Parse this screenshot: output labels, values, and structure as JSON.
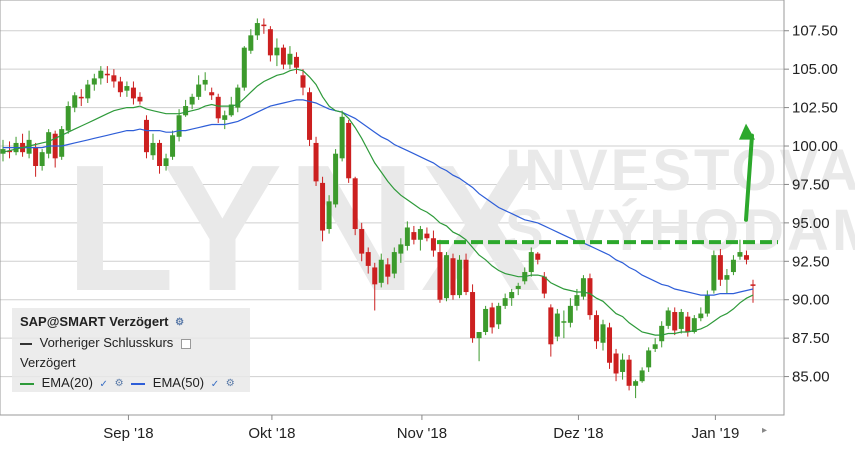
{
  "watermark": {
    "logo": "LYNX",
    "line1": "INVESTOVAT",
    "line2": "S VÝHODAMI"
  },
  "legend": {
    "title": "SAP@SMART Verzögert",
    "previous_close": "Vorheriger Schlusskurs",
    "delayed": "Verzögert",
    "ema20_label": "EMA(20)",
    "ema50_label": "EMA(50)"
  },
  "colors": {
    "up": "#3c9a2c",
    "down": "#cc2020",
    "ema20": "#2e9a3a",
    "ema50": "#2e5ed8",
    "resistance": "#2ca82c",
    "arrow": "#2ca82c",
    "grid": "#cfcfcf"
  },
  "chart_data": {
    "type": "candlestick",
    "x_ticks": [
      "Sep '18",
      "Okt '18",
      "Nov '18",
      "Dez '18",
      "Jan '19"
    ],
    "y_ticks": [
      "85.00",
      "87.50",
      "90.00",
      "92.50",
      "95.00",
      "97.50",
      "100.00",
      "102.50",
      "105.00",
      "107.50"
    ],
    "ylim": [
      82.5,
      109.5
    ],
    "grid": true,
    "resistance_level": 93.75,
    "arrow": {
      "from": 95.2,
      "to": 101.2,
      "direction": "up"
    },
    "ohlc": [
      [
        99.5,
        100.4,
        99.0,
        99.8
      ],
      [
        99.7,
        100.3,
        99.2,
        99.6
      ],
      [
        99.6,
        100.6,
        99.4,
        100.2
      ],
      [
        100.2,
        100.8,
        99.3,
        99.6
      ],
      [
        99.5,
        101.0,
        99.2,
        100.4
      ],
      [
        99.9,
        100.2,
        98.0,
        98.7
      ],
      [
        98.7,
        99.8,
        98.4,
        99.6
      ],
      [
        99.5,
        101.1,
        99.2,
        100.9
      ],
      [
        100.8,
        101.0,
        98.6,
        99.2
      ],
      [
        99.3,
        101.3,
        99.1,
        101.1
      ],
      [
        101.0,
        102.9,
        100.8,
        102.6
      ],
      [
        102.5,
        103.5,
        102.2,
        103.3
      ],
      [
        103.2,
        103.7,
        102.6,
        103.1
      ],
      [
        103.1,
        104.3,
        102.8,
        104.0
      ],
      [
        104.0,
        104.7,
        103.6,
        104.4
      ],
      [
        104.4,
        105.2,
        104.0,
        104.9
      ],
      [
        104.7,
        105.2,
        104.1,
        104.6
      ],
      [
        104.6,
        105.0,
        103.8,
        104.2
      ],
      [
        104.2,
        104.5,
        103.2,
        103.5
      ],
      [
        103.6,
        104.2,
        103.2,
        103.9
      ],
      [
        103.8,
        104.2,
        102.7,
        103.1
      ],
      [
        103.2,
        103.5,
        102.7,
        102.9
      ],
      [
        101.7,
        102.0,
        99.2,
        99.6
      ],
      [
        99.4,
        100.8,
        99.1,
        100.2
      ],
      [
        100.2,
        100.4,
        98.2,
        98.7
      ],
      [
        98.7,
        99.5,
        98.4,
        99.2
      ],
      [
        99.3,
        101.0,
        99.1,
        100.7
      ],
      [
        100.6,
        102.4,
        100.3,
        102.0
      ],
      [
        102.0,
        103.0,
        101.9,
        102.6
      ],
      [
        102.7,
        103.4,
        102.4,
        103.2
      ],
      [
        103.2,
        104.6,
        103.0,
        104.0
      ],
      [
        104.0,
        104.8,
        103.6,
        104.3
      ],
      [
        103.5,
        103.8,
        103.0,
        103.3
      ],
      [
        103.2,
        103.4,
        101.5,
        101.8
      ],
      [
        101.7,
        102.3,
        101.1,
        102.0
      ],
      [
        102.0,
        103.2,
        101.9,
        102.7
      ],
      [
        102.5,
        104.0,
        102.2,
        103.8
      ],
      [
        103.8,
        106.5,
        103.6,
        106.4
      ],
      [
        106.2,
        107.6,
        106.0,
        107.2
      ],
      [
        107.2,
        108.3,
        106.9,
        108.0
      ],
      [
        107.9,
        108.3,
        107.3,
        107.8
      ],
      [
        107.6,
        107.8,
        105.5,
        105.9
      ],
      [
        105.9,
        107.0,
        105.2,
        106.4
      ],
      [
        106.4,
        106.6,
        105.0,
        105.3
      ],
      [
        105.3,
        106.5,
        105.0,
        106.0
      ],
      [
        105.8,
        106.1,
        104.7,
        105.1
      ],
      [
        104.6,
        105.0,
        103.3,
        103.8
      ],
      [
        103.5,
        103.8,
        100.0,
        100.4
      ],
      [
        100.2,
        100.6,
        97.4,
        97.7
      ],
      [
        97.6,
        98.0,
        93.8,
        94.5
      ],
      [
        94.6,
        96.8,
        94.3,
        96.4
      ],
      [
        96.2,
        99.8,
        96.0,
        99.5
      ],
      [
        99.2,
        102.3,
        99.0,
        101.9
      ],
      [
        101.5,
        101.7,
        97.6,
        97.9
      ],
      [
        97.9,
        98.0,
        94.2,
        94.6
      ],
      [
        94.6,
        95.0,
        92.5,
        93.0
      ],
      [
        93.1,
        93.4,
        91.7,
        92.2
      ],
      [
        92.1,
        92.4,
        89.3,
        91.0
      ],
      [
        91.1,
        93.0,
        90.8,
        92.6
      ],
      [
        92.3,
        92.7,
        91.0,
        91.5
      ],
      [
        91.7,
        93.4,
        91.4,
        93.1
      ],
      [
        93.0,
        94.0,
        92.4,
        93.6
      ],
      [
        93.5,
        95.1,
        93.2,
        94.7
      ],
      [
        94.4,
        94.8,
        93.6,
        93.9
      ],
      [
        93.9,
        94.8,
        93.2,
        94.6
      ],
      [
        94.3,
        94.7,
        93.8,
        94.0
      ],
      [
        94.0,
        94.5,
        92.8,
        93.2
      ],
      [
        93.1,
        93.9,
        89.8,
        90.0
      ],
      [
        90.1,
        93.1,
        89.9,
        92.9
      ],
      [
        92.7,
        93.0,
        90.0,
        90.3
      ],
      [
        90.3,
        92.9,
        90.1,
        92.6
      ],
      [
        92.6,
        93.0,
        90.3,
        90.5
      ],
      [
        90.5,
        91.0,
        87.2,
        87.5
      ],
      [
        87.5,
        87.7,
        86.0,
        87.9
      ],
      [
        87.9,
        89.6,
        87.7,
        89.4
      ],
      [
        89.5,
        89.8,
        87.8,
        88.2
      ],
      [
        88.4,
        89.8,
        88.1,
        89.6
      ],
      [
        89.6,
        90.4,
        89.4,
        90.1
      ],
      [
        90.1,
        90.7,
        89.6,
        90.5
      ],
      [
        90.7,
        91.1,
        90.3,
        90.9
      ],
      [
        91.2,
        92.1,
        91.0,
        91.8
      ],
      [
        91.8,
        93.4,
        91.5,
        93.1
      ],
      [
        93.0,
        93.1,
        92.3,
        92.6
      ],
      [
        91.5,
        91.8,
        90.1,
        90.4
      ],
      [
        89.5,
        89.7,
        86.3,
        87.1
      ],
      [
        87.6,
        89.4,
        87.3,
        89.1
      ],
      [
        88.6,
        89.3,
        87.5,
        88.6
      ],
      [
        88.5,
        90.1,
        88.2,
        89.6
      ],
      [
        89.6,
        90.7,
        89.3,
        90.3
      ],
      [
        90.2,
        91.6,
        90.0,
        91.4
      ],
      [
        91.4,
        91.7,
        88.7,
        89.0
      ],
      [
        89.0,
        89.3,
        86.8,
        87.3
      ],
      [
        87.2,
        88.7,
        86.7,
        88.4
      ],
      [
        88.2,
        88.5,
        85.5,
        85.9
      ],
      [
        86.5,
        86.8,
        84.7,
        85.2
      ],
      [
        85.3,
        86.5,
        84.8,
        86.1
      ],
      [
        86.1,
        86.4,
        84.1,
        84.4
      ],
      [
        84.4,
        84.8,
        83.6,
        84.7
      ],
      [
        84.7,
        85.6,
        84.6,
        85.4
      ],
      [
        85.6,
        86.9,
        85.3,
        86.7
      ],
      [
        86.8,
        87.5,
        86.6,
        87.1
      ],
      [
        87.3,
        88.6,
        86.9,
        88.3
      ],
      [
        88.3,
        89.5,
        88.1,
        89.3
      ],
      [
        89.2,
        89.5,
        87.7,
        88.0
      ],
      [
        88.1,
        89.4,
        87.8,
        89.2
      ],
      [
        88.9,
        89.2,
        87.6,
        87.9
      ],
      [
        87.9,
        89.0,
        87.8,
        88.8
      ],
      [
        88.8,
        89.5,
        88.6,
        89.1
      ],
      [
        89.1,
        90.6,
        88.9,
        90.3
      ],
      [
        90.6,
        93.2,
        90.4,
        92.9
      ],
      [
        92.9,
        93.3,
        90.9,
        91.3
      ],
      [
        91.3,
        92.0,
        90.4,
        91.6
      ],
      [
        91.8,
        92.9,
        91.6,
        92.6
      ],
      [
        92.8,
        93.9,
        92.6,
        93.1
      ],
      [
        92.9,
        93.2,
        92.3,
        92.6
      ],
      [
        91.0,
        91.3,
        89.8,
        90.9
      ]
    ],
    "ema20": [
      99.6,
      99.7,
      99.8,
      99.9,
      100.0,
      100.1,
      100.2,
      100.3,
      100.5,
      100.7,
      100.9,
      101.1,
      101.3,
      101.5,
      101.7,
      101.9,
      102.1,
      102.3,
      102.4,
      102.5,
      102.5,
      102.6,
      102.4,
      102.3,
      102.2,
      102.1,
      102.1,
      102.1,
      102.2,
      102.3,
      102.4,
      102.6,
      102.7,
      102.6,
      102.6,
      102.6,
      102.7,
      103.1,
      103.5,
      103.9,
      104.2,
      104.4,
      104.6,
      104.7,
      104.9,
      105.0,
      104.9,
      104.5,
      104.0,
      103.2,
      102.6,
      102.3,
      102.2,
      101.8,
      101.2,
      100.5,
      99.7,
      98.9,
      98.3,
      97.7,
      97.2,
      96.8,
      96.5,
      96.2,
      95.9,
      95.7,
      95.4,
      95.0,
      94.8,
      94.4,
      94.2,
      93.9,
      93.4,
      92.9,
      92.6,
      92.2,
      91.9,
      91.7,
      91.6,
      91.5,
      91.5,
      91.6,
      91.6,
      91.5,
      91.1,
      90.9,
      90.7,
      90.6,
      90.5,
      90.5,
      90.4,
      90.1,
      89.9,
      89.5,
      89.1,
      88.9,
      88.5,
      88.2,
      87.9,
      87.8,
      87.7,
      87.7,
      87.8,
      87.8,
      87.9,
      87.9,
      88.0,
      88.1,
      88.3,
      88.6,
      88.9,
      89.1,
      89.4,
      89.8,
      90.1,
      90.3
    ],
    "ema50": [
      99.9,
      99.9,
      99.9,
      99.9,
      99.9,
      99.9,
      99.9,
      100.0,
      100.0,
      100.0,
      100.1,
      100.2,
      100.3,
      100.4,
      100.5,
      100.6,
      100.7,
      100.8,
      100.9,
      101.0,
      101.0,
      101.1,
      101.0,
      101.0,
      101.0,
      100.9,
      100.9,
      101.0,
      101.0,
      101.1,
      101.2,
      101.3,
      101.4,
      101.4,
      101.4,
      101.5,
      101.6,
      101.8,
      102.0,
      102.2,
      102.4,
      102.6,
      102.7,
      102.8,
      102.9,
      103.0,
      103.0,
      102.9,
      102.8,
      102.6,
      102.4,
      102.3,
      102.2,
      102.0,
      101.8,
      101.5,
      101.2,
      100.9,
      100.6,
      100.4,
      100.1,
      99.9,
      99.7,
      99.5,
      99.3,
      99.1,
      98.9,
      98.6,
      98.4,
      98.1,
      97.9,
      97.6,
      97.3,
      96.9,
      96.6,
      96.3,
      96.0,
      95.8,
      95.6,
      95.4,
      95.2,
      95.1,
      95.0,
      94.8,
      94.6,
      94.4,
      94.2,
      94.0,
      93.8,
      93.7,
      93.5,
      93.3,
      93.1,
      92.9,
      92.6,
      92.4,
      92.1,
      91.9,
      91.6,
      91.4,
      91.2,
      91.0,
      90.9,
      90.7,
      90.6,
      90.5,
      90.4,
      90.3,
      90.3,
      90.3,
      90.4,
      90.4,
      90.4,
      90.5,
      90.6,
      90.7
    ]
  }
}
